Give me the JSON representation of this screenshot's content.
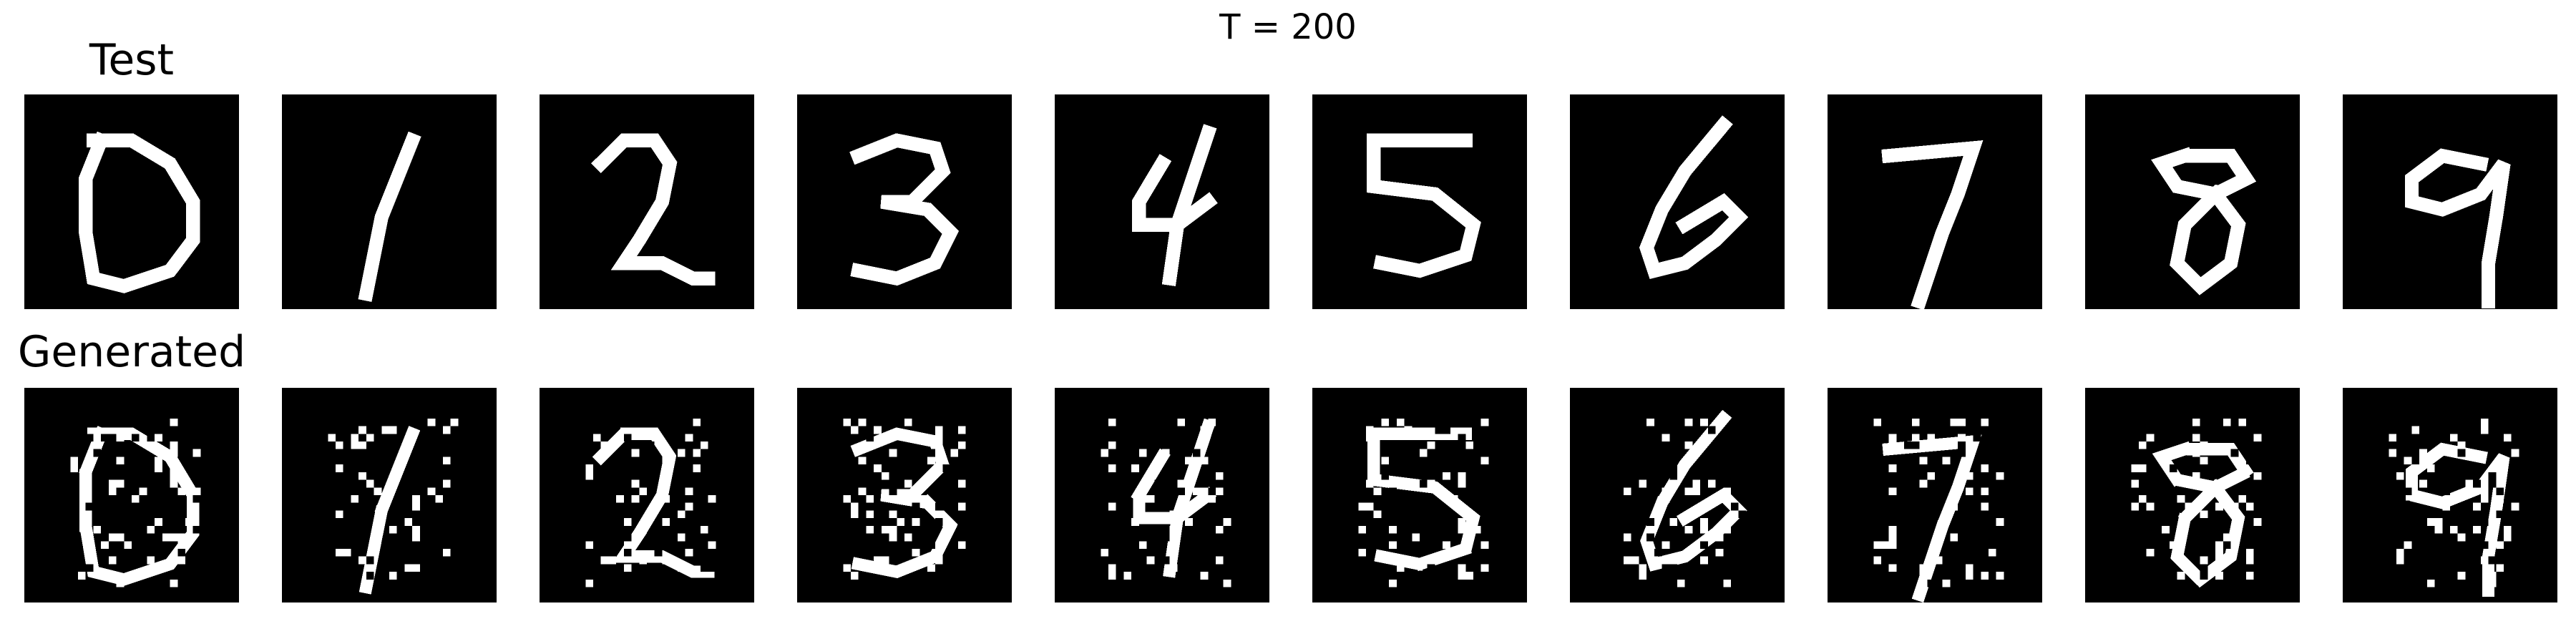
{
  "figure": {
    "title": "T = 200",
    "rows": [
      {
        "label": "Test",
        "digits": [
          {
            "digit": 0,
            "style": "clean"
          },
          {
            "digit": 1,
            "style": "clean"
          },
          {
            "digit": 2,
            "style": "clean"
          },
          {
            "digit": 3,
            "style": "clean"
          },
          {
            "digit": 4,
            "style": "clean"
          },
          {
            "digit": 5,
            "style": "clean"
          },
          {
            "digit": 6,
            "style": "clean"
          },
          {
            "digit": 7,
            "style": "clean"
          },
          {
            "digit": 8,
            "style": "clean"
          },
          {
            "digit": 9,
            "style": "clean"
          }
        ]
      },
      {
        "label": "Generated",
        "digits": [
          {
            "digit": 0,
            "style": "noisy"
          },
          {
            "digit": 1,
            "style": "noisy"
          },
          {
            "digit": 2,
            "style": "noisy"
          },
          {
            "digit": 3,
            "style": "noisy"
          },
          {
            "digit": 4,
            "style": "noisy"
          },
          {
            "digit": 5,
            "style": "noisy"
          },
          {
            "digit": 6,
            "style": "noisy"
          },
          {
            "digit": 7,
            "style": "noisy"
          },
          {
            "digit": 8,
            "style": "noisy"
          },
          {
            "digit": 9,
            "style": "noisy"
          }
        ]
      }
    ],
    "colors": {
      "background": "#000000",
      "foreground": "#ffffff",
      "page": "#ffffff"
    }
  }
}
